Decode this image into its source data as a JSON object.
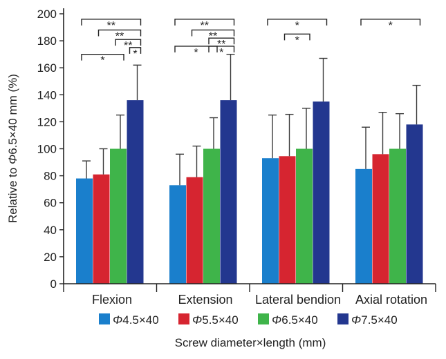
{
  "chart_data": {
    "type": "bar",
    "title": "",
    "xlabel": "Screw diameter×length (mm)",
    "ylabel_prefix": "Relative to ",
    "ylabel_symbol": "Φ",
    "ylabel_suffix": "6.5×40 mm (%)",
    "ylim": [
      0,
      200
    ],
    "yticks": [
      0,
      20,
      40,
      60,
      80,
      100,
      120,
      140,
      160,
      180,
      200
    ],
    "categories": [
      "Flexion",
      "Extension",
      "Lateral bendion",
      "Axial rotation"
    ],
    "series": [
      {
        "name": "Φ4.5×40",
        "symbol": "Φ",
        "text": "4.5×40",
        "color": "#1a7fcc",
        "values": [
          78,
          73,
          93,
          85
        ],
        "errors": [
          13,
          23,
          32,
          31
        ]
      },
      {
        "name": "Φ5.5×40",
        "symbol": "Φ",
        "text": "5.5×40",
        "color": "#d62530",
        "values": [
          81,
          79,
          94.5,
          96
        ],
        "errors": [
          19,
          23,
          31,
          31
        ]
      },
      {
        "name": "Φ6.5×40",
        "symbol": "Φ",
        "text": "6.5×40",
        "color": "#3fb44a",
        "values": [
          100,
          100,
          100,
          100
        ],
        "errors": [
          25,
          23,
          30,
          26
        ]
      },
      {
        "name": "Φ7.5×40",
        "symbol": "Φ",
        "text": "7.5×40",
        "color": "#23378f",
        "values": [
          136,
          136,
          135,
          118
        ],
        "errors": [
          26,
          34,
          32,
          29
        ]
      }
    ],
    "significance": [
      {
        "category": 0,
        "from": 0,
        "to": 2,
        "level": 170,
        "label": "*"
      },
      {
        "category": 0,
        "from": 1,
        "to": 3,
        "level": 188,
        "label": "**"
      },
      {
        "category": 0,
        "from": 2,
        "to": 3,
        "level": 181,
        "label": "**"
      },
      {
        "category": 0,
        "from": 3,
        "to": 3,
        "level": 175,
        "label": "*"
      },
      {
        "category": 0,
        "from": 0,
        "to": 3,
        "level": 196,
        "label": "**"
      },
      {
        "category": 1,
        "from": 0,
        "to": 2,
        "level": 176,
        "label": "*"
      },
      {
        "category": 1,
        "from": 1,
        "to": 3,
        "level": 188,
        "label": "**"
      },
      {
        "category": 1,
        "from": 2,
        "to": 3,
        "level": 182,
        "label": "**"
      },
      {
        "category": 1,
        "from": 2,
        "to": 3,
        "level": 176,
        "label": "*"
      },
      {
        "category": 1,
        "from": 0,
        "to": 3,
        "level": 196,
        "label": "**"
      },
      {
        "category": 2,
        "from": 1,
        "to": 2,
        "level": 185,
        "label": "*"
      },
      {
        "category": 2,
        "from": 0,
        "to": 3,
        "level": 196,
        "label": "*"
      },
      {
        "category": 3,
        "from": 0,
        "to": 3,
        "level": 196,
        "label": "*"
      }
    ],
    "legend_position": "bottom"
  }
}
